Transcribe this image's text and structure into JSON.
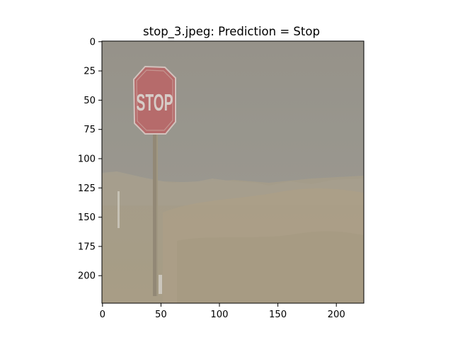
{
  "chart_data": {
    "type": "image",
    "title": "stop_3.jpeg: Prediction = Stop",
    "image_size": [
      224,
      224
    ],
    "xlim": [
      0,
      224
    ],
    "ylim": [
      224,
      0
    ],
    "x_ticks": [
      0,
      50,
      100,
      150,
      200
    ],
    "y_ticks": [
      0,
      25,
      50,
      75,
      100,
      125,
      150,
      175,
      200
    ],
    "image_content": {
      "description": "hazy roadside stop sign in a dry grassy field",
      "sign_text": "STOP",
      "colors": {
        "sky": "#94938d",
        "ground": "#a49a84",
        "sign": "#b86466",
        "post": "#8f8472"
      }
    }
  }
}
